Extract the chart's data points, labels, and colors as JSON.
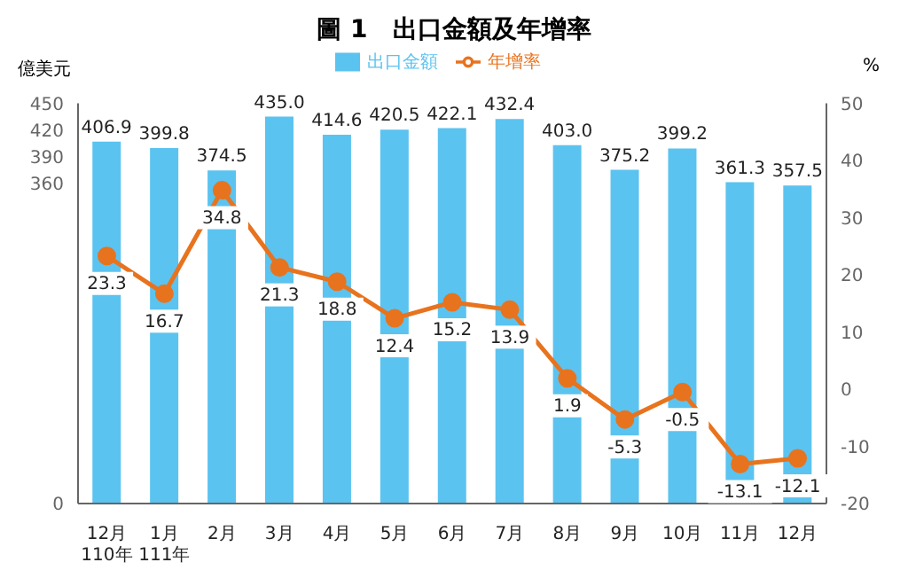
{
  "chart_data": {
    "type": "bar",
    "title": "圖 1　出口金額及年增率",
    "ylabel": "億美元",
    "y2label": "%",
    "categories": [
      "12月\n110年",
      "1月\n111年",
      "2月",
      "3月",
      "4月",
      "5月",
      "6月",
      "7月",
      "8月",
      "9月",
      "10月",
      "11月",
      "12月"
    ],
    "series": [
      {
        "name": "出口金額",
        "color": "#5bc3f0",
        "values": [
          406.9,
          399.8,
          374.5,
          435.0,
          414.6,
          420.5,
          422.1,
          432.4,
          403.0,
          375.2,
          399.2,
          361.3,
          357.5
        ],
        "value_labels": [
          "406.9",
          "399.8",
          "374.5",
          "435.0",
          "414.6",
          "420.5",
          "422.1",
          "432.4",
          "403.0",
          "375.2",
          "399.2",
          "361.3",
          "357.5"
        ]
      },
      {
        "name": "年增率",
        "type": "line",
        "axis": "y2",
        "color": "#e8731e",
        "values": [
          23.3,
          16.7,
          34.8,
          21.3,
          18.8,
          12.4,
          15.2,
          13.9,
          1.9,
          -5.3,
          -0.5,
          -13.1,
          -12.1
        ],
        "value_labels": [
          "23.3",
          "16.7",
          "34.8",
          "21.3",
          "18.8",
          "12.4",
          "15.2",
          "13.9",
          "1.9",
          "-5.3",
          "-0.5",
          "-13.1",
          "-12.1"
        ]
      }
    ],
    "ylim": [
      0,
      450
    ],
    "yticks": [
      0,
      360,
      390,
      420,
      450
    ],
    "y2lim": [
      -20,
      50
    ],
    "y2ticks": [
      -20,
      -10,
      0,
      10,
      20,
      30,
      40,
      50
    ],
    "legend": "top",
    "marker": "circle",
    "grid": false
  }
}
